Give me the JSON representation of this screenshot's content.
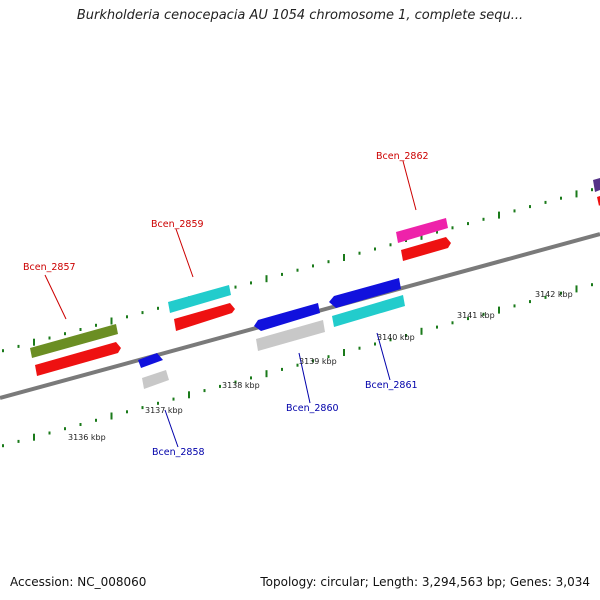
{
  "title": "Burkholderia cenocepacia AU 1054 chromosome 1, complete sequ...",
  "footer": {
    "accession": "Accession: NC_008060",
    "summary": "Topology: circular; Length: 3,294,563 bp; Genes: 3,034"
  },
  "scale_labels": [
    "3136 kbp",
    "3137 kbp",
    "3138 kbp",
    "3139 kbp",
    "3140 kbp",
    "3141 kbp",
    "3142 kbp"
  ],
  "gene_labels": [
    {
      "text": "Bcen_2857",
      "color": "#cc0000"
    },
    {
      "text": "Bcen_2858",
      "color": "#0000aa"
    },
    {
      "text": "Bcen_2859",
      "color": "#cc0000"
    },
    {
      "text": "Bcen_2860",
      "color": "#0000aa"
    },
    {
      "text": "Bcen_2861",
      "color": "#0000aa"
    },
    {
      "text": "Bcen_2862",
      "color": "#cc0000"
    }
  ],
  "colors": {
    "backbone": "#7a7a7a",
    "tick": "#1a7a1a",
    "olive": "#6b8e23",
    "red": "#ee1111",
    "blue": "#1111dd",
    "gray": "#c8c8c8",
    "cyan": "#22cccc",
    "magenta": "#ee22aa",
    "purple": "#553388"
  }
}
